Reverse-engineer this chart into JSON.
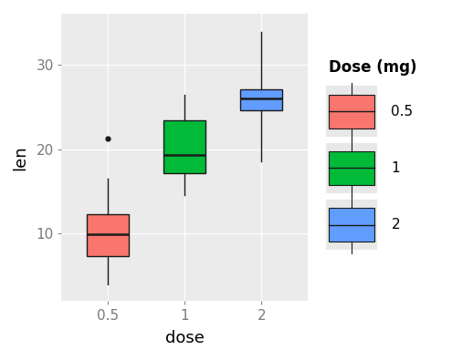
{
  "boxes": [
    {
      "label": "0.5",
      "color": "#F8766D",
      "whisker_low": 4.0,
      "q1": 7.3,
      "median": 9.95,
      "q3": 12.25,
      "whisker_high": 16.5,
      "outliers": [
        21.2
      ]
    },
    {
      "label": "1",
      "color": "#00BA38",
      "whisker_low": 14.5,
      "q1": 17.15,
      "median": 19.25,
      "q3": 23.375,
      "whisker_high": 26.4,
      "outliers": []
    },
    {
      "label": "2",
      "color": "#619CFF",
      "whisker_low": 18.5,
      "q1": 24.575,
      "median": 25.95,
      "q3": 27.075,
      "whisker_high": 33.9,
      "outliers": []
    }
  ],
  "x_positions": [
    1,
    2,
    3
  ],
  "x_labels": [
    "0.5",
    "1",
    "2"
  ],
  "xlabel": "dose",
  "ylabel": "len",
  "legend_title": "Dose (mg)",
  "legend_labels": [
    "0.5",
    "1",
    "2"
  ],
  "legend_colors": [
    "#F8766D",
    "#00BA38",
    "#619CFF"
  ],
  "ylim": [
    2,
    36
  ],
  "yticks": [
    10,
    20,
    30
  ],
  "panel_bg": "#EBEBEB",
  "fig_bg": "#FFFFFF",
  "grid_color": "#FFFFFF",
  "box_width": 0.55,
  "linewidth": 1.0,
  "tick_label_color": "#7A7A7A",
  "tick_label_size": 11,
  "axis_label_size": 13
}
